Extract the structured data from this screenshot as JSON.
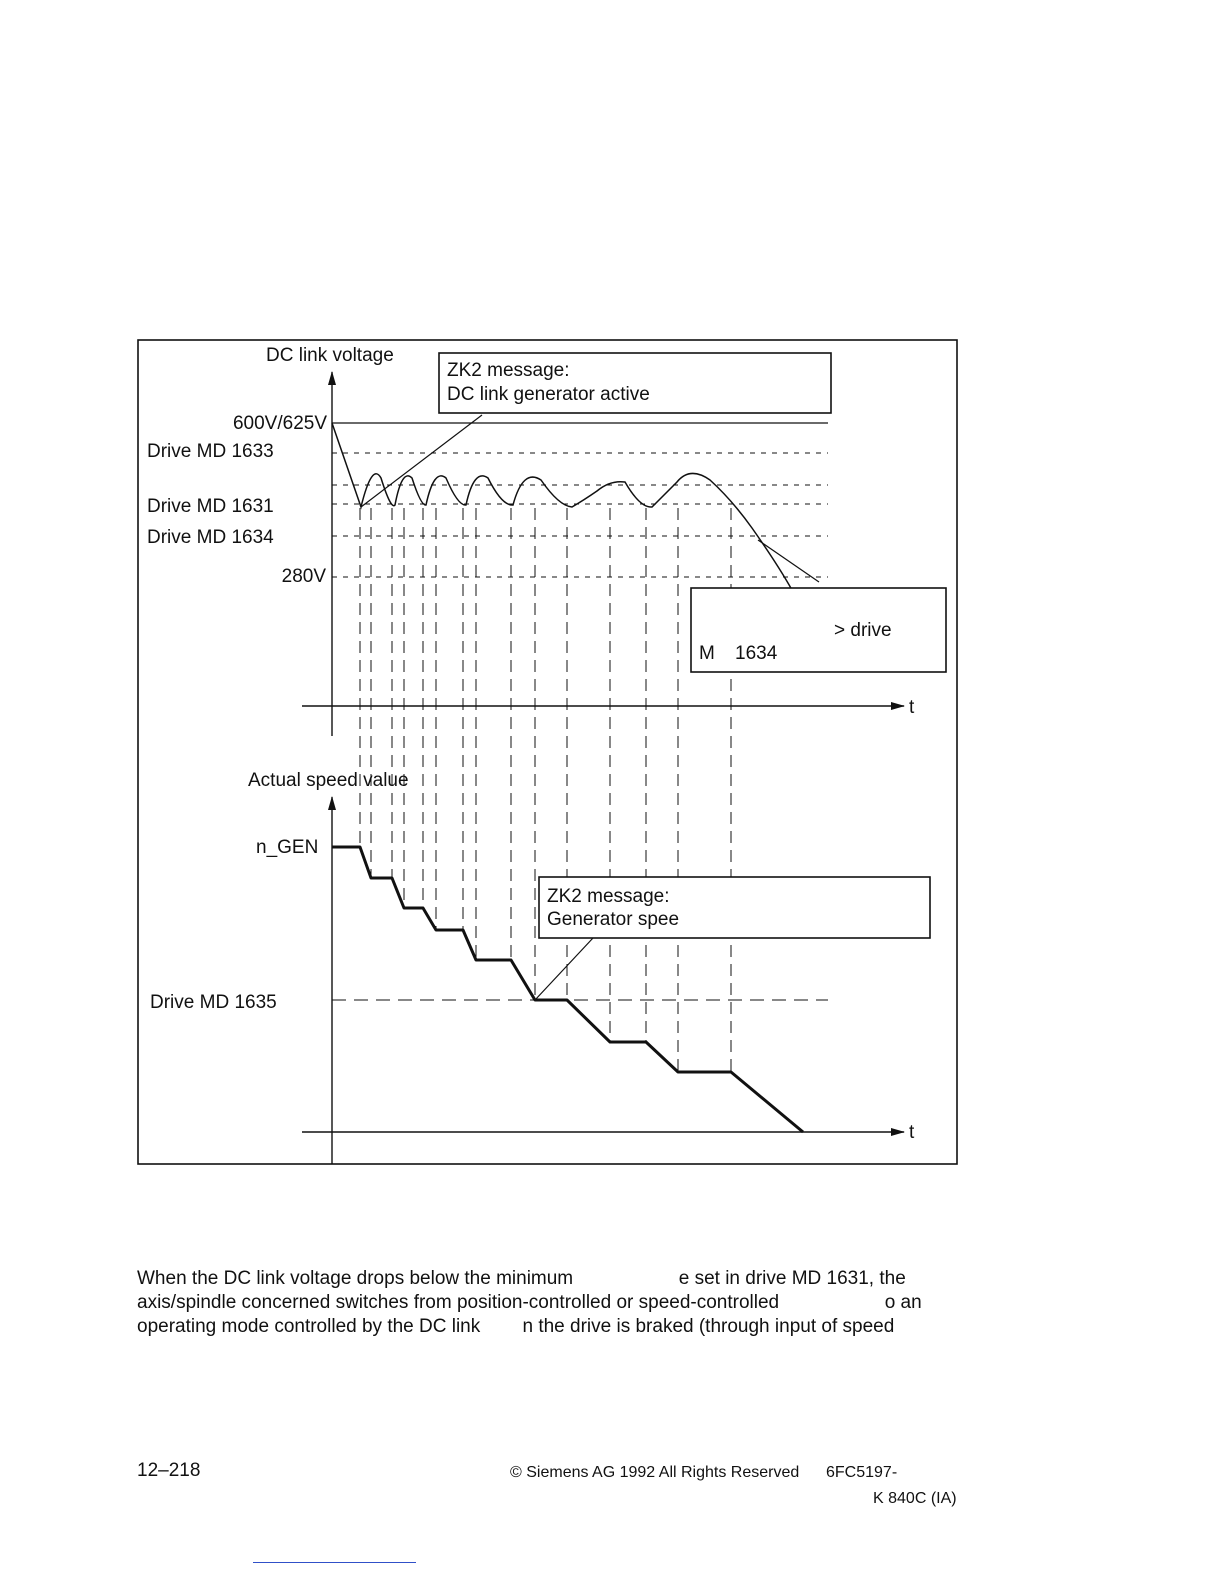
{
  "figure": {
    "voltage_axis_label": "DC link voltage",
    "speed_axis_label": "Actual speed value",
    "time_label": "t",
    "level_600": "600V/625V",
    "md1633": "Drive MD 1633",
    "md1631": "Drive MD 1631",
    "md1634": "Drive MD 1634",
    "level_280": "280V",
    "n_gen": "n_GEN",
    "md1635": "Drive MD 1635",
    "callout_zk2_gen": {
      "line1": "ZK2 message:",
      "line2": "DC link generator active"
    },
    "callout_drive": {
      "line1": "> drive",
      "line2_a": "M",
      "line2_b": "1634"
    },
    "callout_zk2_speed": {
      "line1": "ZK2 message:",
      "line2": "Generator spee"
    }
  },
  "body": {
    "line1_a": "When the DC link voltage drops below the minimum",
    "line1_b": "e set in drive MD 1631, the",
    "line2_a": "axis/spindle concerned switches from position-controlled or speed-controlled",
    "line2_b": "o an",
    "line3_a": "operating mode controlled by the DC link",
    "line3_b": "n the drive is braked (through input of speed"
  },
  "footer": {
    "page_number": "12–218",
    "copyright": "© Siemens AG  1992  All Rights Reserved",
    "doc_id": "6FC5197-",
    "model": "K 840C (IA)"
  }
}
